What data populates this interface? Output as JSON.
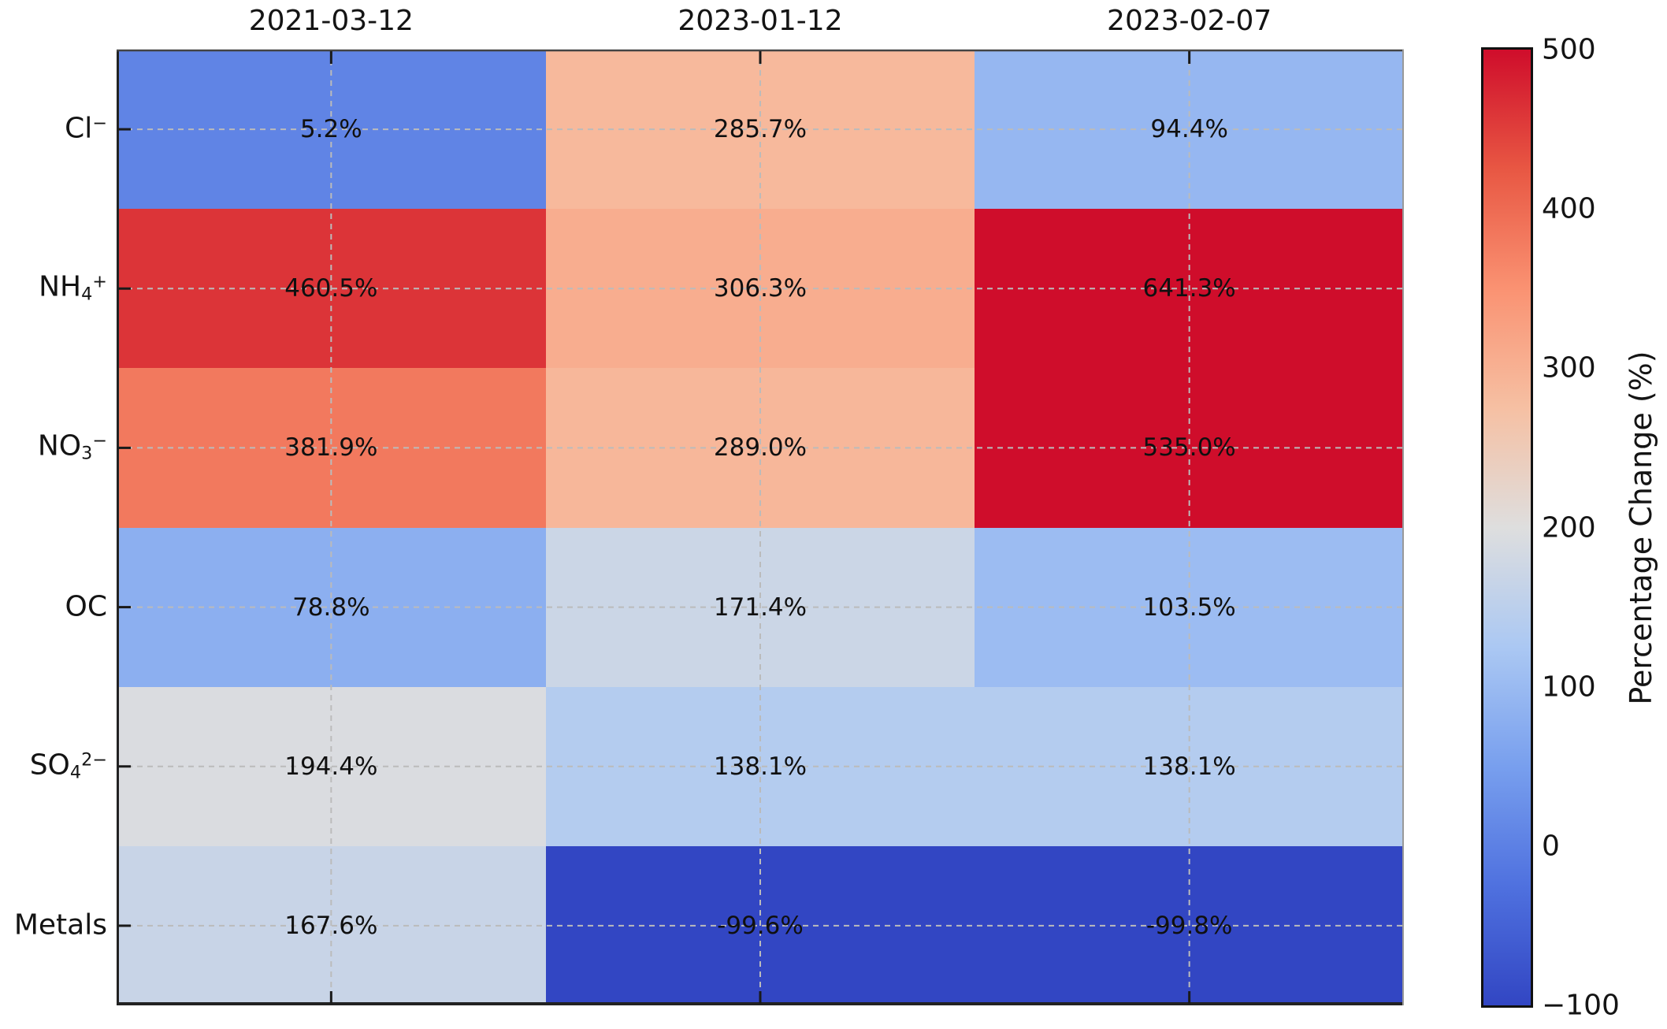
{
  "figure": {
    "background": "#ffffff",
    "text_color": "#141414"
  },
  "chart_data": {
    "type": "heatmap",
    "title": "",
    "columns": [
      "2021-03-12",
      "2023-01-12",
      "2023-02-07"
    ],
    "rows": [
      {
        "plain": "Cl−",
        "base": "Cl",
        "sub": "",
        "sup": "−"
      },
      {
        "plain": "NH4+",
        "base": "NH",
        "sub": "4",
        "sup": "+"
      },
      {
        "plain": "NO3−",
        "base": "NO",
        "sub": "3",
        "sup": "−"
      },
      {
        "plain": "OC",
        "base": "OC",
        "sub": "",
        "sup": ""
      },
      {
        "plain": "SO42−",
        "base": "SO",
        "sub": "4",
        "sup": "2−"
      },
      {
        "plain": "Metals",
        "base": "Metals",
        "sub": "",
        "sup": ""
      }
    ],
    "values": [
      [
        5.2,
        285.7,
        94.4
      ],
      [
        460.5,
        306.3,
        641.3
      ],
      [
        381.9,
        289.0,
        535.0
      ],
      [
        78.8,
        171.4,
        103.5
      ],
      [
        194.4,
        138.1,
        138.1
      ],
      [
        167.6,
        -99.6,
        -99.8
      ]
    ],
    "cell_labels": [
      [
        "5.2%",
        "285.7%",
        "94.4%"
      ],
      [
        "460.5%",
        "306.3%",
        "641.3%"
      ],
      [
        "381.9%",
        "289.0%",
        "535.0%"
      ],
      [
        "78.8%",
        "171.4%",
        "103.5%"
      ],
      [
        "194.4%",
        "138.1%",
        "138.1%"
      ],
      [
        "167.6%",
        "-99.6%",
        "-99.8%"
      ]
    ],
    "colorbar": {
      "label": "Percentage Change (%)",
      "vmin": -100,
      "vmax": 500,
      "ticks": [
        500,
        400,
        300,
        200,
        100,
        0,
        -100
      ],
      "tick_labels": [
        "500",
        "400",
        "300",
        "200",
        "100",
        "0",
        "−100"
      ]
    },
    "colormap": {
      "name": "coolwarm",
      "stops": [
        "#3246c3",
        "#4f71df",
        "#789fee",
        "#abc8f3",
        "#dedede",
        "#f6c0a3",
        "#fa9272",
        "#e85743",
        "#cf0d2b"
      ]
    },
    "grid": {
      "visible": true,
      "style": "dashed",
      "color": "#bbbbbb"
    }
  }
}
